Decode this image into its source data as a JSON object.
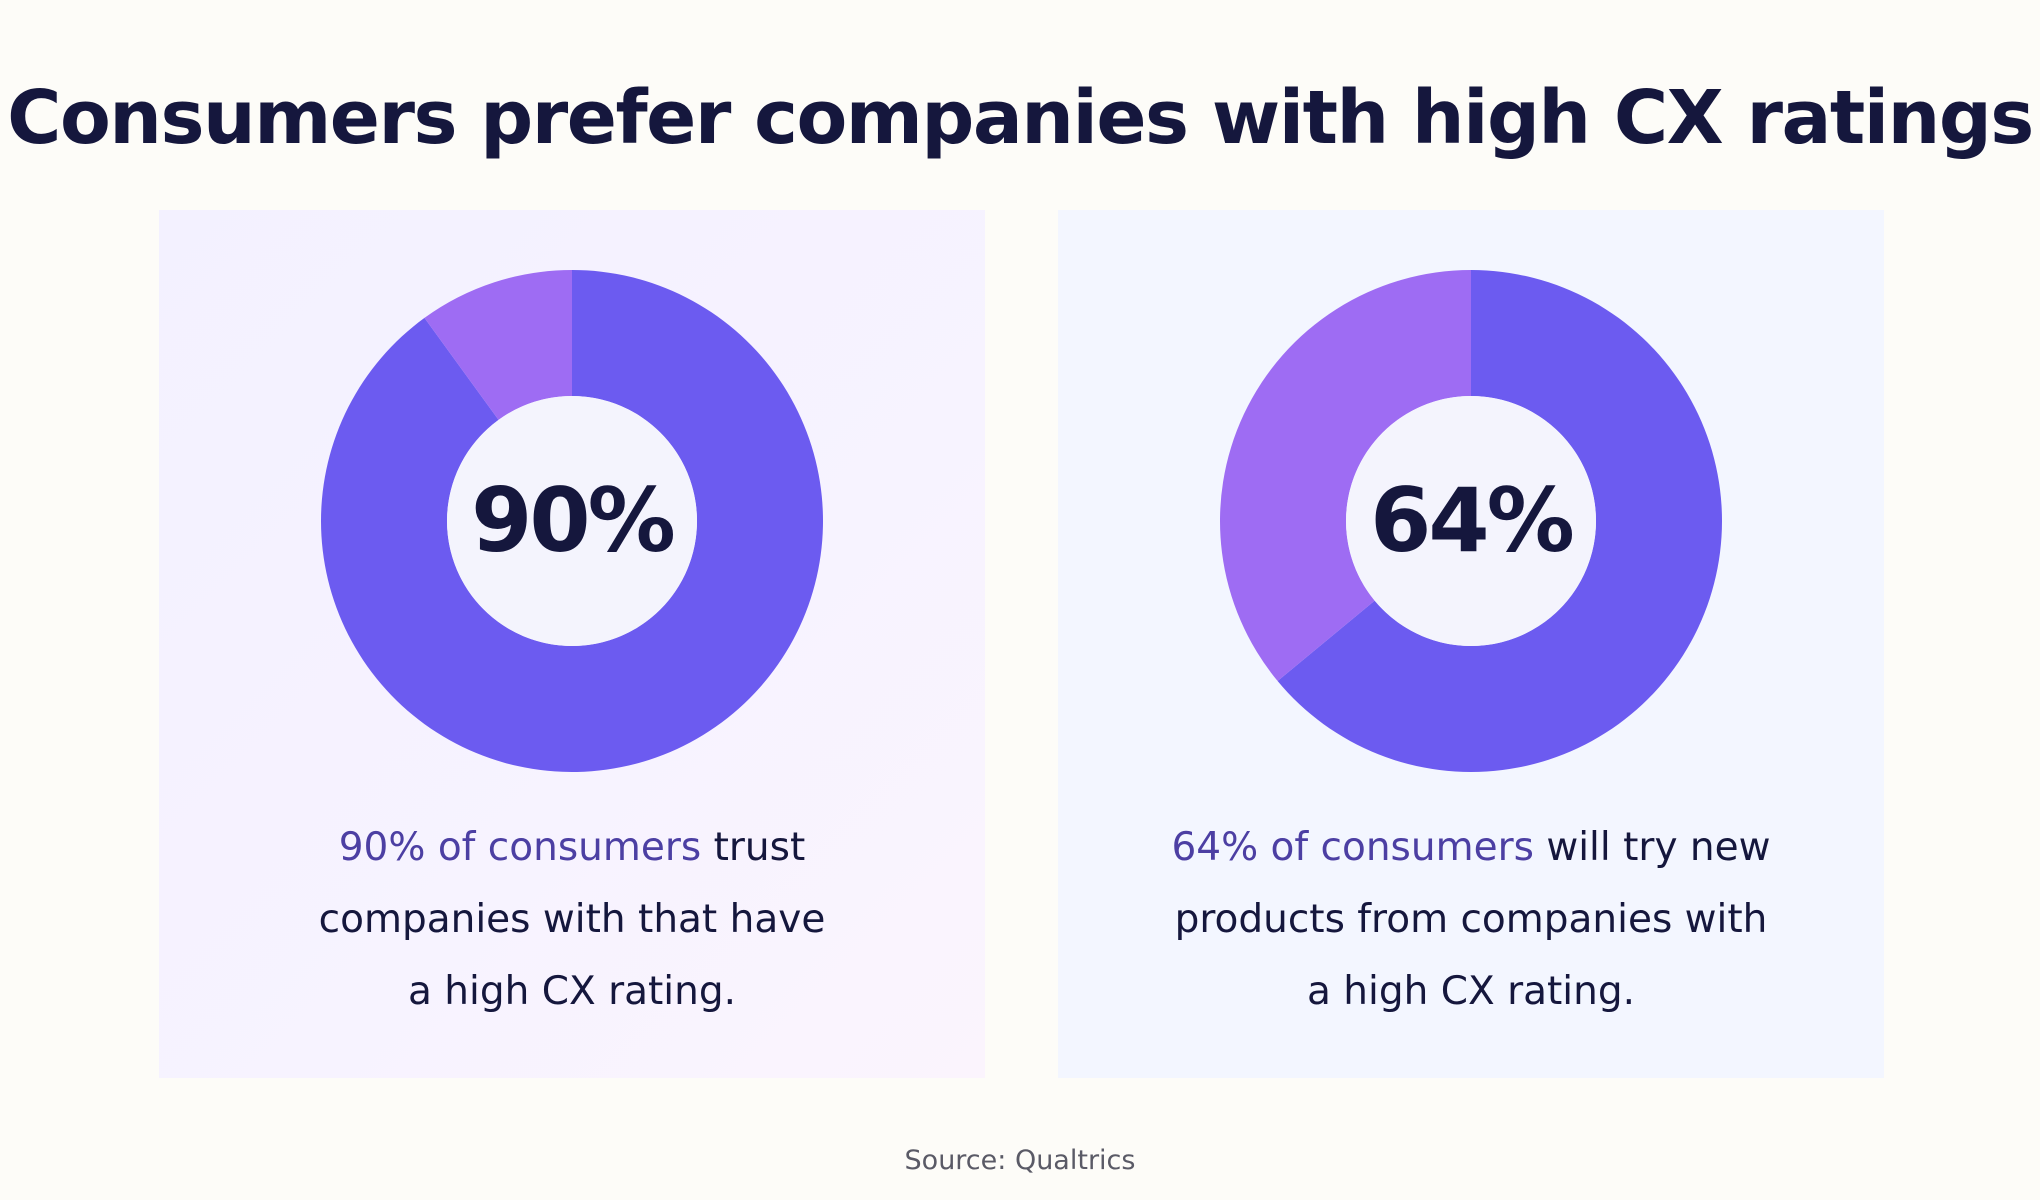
{
  "title": "Consumers prefer companies with high CX ratings",
  "source": "Source: Qualtrics",
  "colors": {
    "primary_slice": "#6c5bf0",
    "secondary_slice": "#9e6cf3",
    "donut_hole": "#f4f4fd",
    "title_text": "#15173d",
    "highlight_text": "#4c3fa3"
  },
  "chart_data": [
    {
      "type": "pie",
      "values": [
        90,
        10
      ],
      "center_label": "90%",
      "caption": {
        "highlight": "90% of consumers",
        "line1_rest": " trust",
        "line2": "companies with that have",
        "line3": "a high CX rating."
      }
    },
    {
      "type": "pie",
      "values": [
        64,
        36
      ],
      "center_label": "64%",
      "caption": {
        "highlight": "64% of consumers",
        "line1_rest": " will try new",
        "line2": "products from companies with",
        "line3": "a high CX rating."
      }
    }
  ]
}
